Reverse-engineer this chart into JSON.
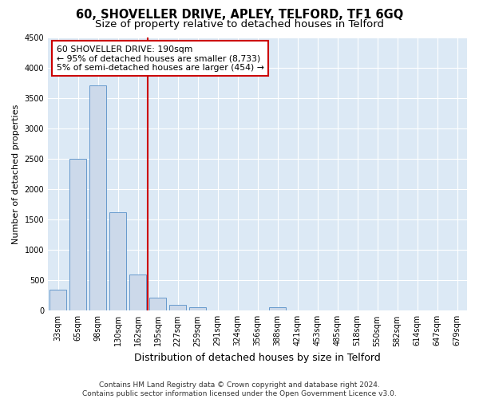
{
  "title": "60, SHOVELLER DRIVE, APLEY, TELFORD, TF1 6GQ",
  "subtitle": "Size of property relative to detached houses in Telford",
  "xlabel": "Distribution of detached houses by size in Telford",
  "ylabel": "Number of detached properties",
  "categories": [
    "33sqm",
    "65sqm",
    "98sqm",
    "130sqm",
    "162sqm",
    "195sqm",
    "227sqm",
    "259sqm",
    "291sqm",
    "324sqm",
    "356sqm",
    "388sqm",
    "421sqm",
    "453sqm",
    "485sqm",
    "518sqm",
    "550sqm",
    "582sqm",
    "614sqm",
    "647sqm",
    "679sqm"
  ],
  "values": [
    350,
    2500,
    3700,
    1620,
    600,
    220,
    100,
    60,
    5,
    5,
    5,
    50,
    5,
    5,
    5,
    5,
    5,
    5,
    5,
    5,
    5
  ],
  "bar_color": "#ccd9ea",
  "bar_edge_color": "#6699cc",
  "vline_color": "#cc0000",
  "vline_pos": 4.5,
  "annotation_line1": "60 SHOVELLER DRIVE: 190sqm",
  "annotation_line2": "← 95% of detached houses are smaller (8,733)",
  "annotation_line3": "5% of semi-detached houses are larger (454) →",
  "annotation_box_facecolor": "#ffffff",
  "annotation_box_edgecolor": "#cc0000",
  "ylim": [
    0,
    4500
  ],
  "yticks": [
    0,
    500,
    1000,
    1500,
    2000,
    2500,
    3000,
    3500,
    4000,
    4500
  ],
  "footer_line1": "Contains HM Land Registry data © Crown copyright and database right 2024.",
  "footer_line2": "Contains public sector information licensed under the Open Government Licence v3.0.",
  "bg_color": "#dce9f5",
  "fig_bg_color": "#ffffff",
  "title_fontsize": 10.5,
  "subtitle_fontsize": 9.5,
  "xlabel_fontsize": 9,
  "ylabel_fontsize": 8,
  "tick_fontsize": 7,
  "annotation_fontsize": 7.8,
  "footer_fontsize": 6.5,
  "grid_color": "#ffffff",
  "grid_linewidth": 0.8
}
